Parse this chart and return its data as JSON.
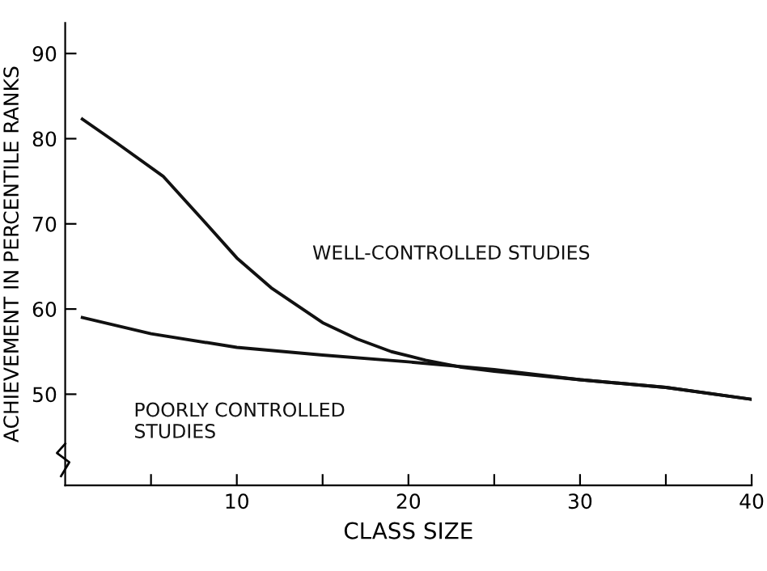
{
  "chart_data": {
    "type": "line",
    "xlabel": "CLASS SIZE",
    "ylabel": "ACHIEVEMENT IN PERCENTILE RANKS",
    "xlim": [
      0,
      40
    ],
    "ylim": [
      39.3,
      93.6
    ],
    "xticks": [
      {
        "value": 5,
        "label": null
      },
      10,
      {
        "value": 15,
        "label": null
      },
      20,
      {
        "value": 25,
        "label": null
      },
      30,
      {
        "value": 35,
        "label": null
      },
      40
    ],
    "yticks": [
      50,
      60,
      70,
      80,
      90
    ],
    "grid": false,
    "legend": false,
    "marker": "none",
    "line_style": "solid",
    "series": [
      {
        "name": "WELL-CONTROLLED STUDIES",
        "color": "#111111",
        "x": [
          1,
          3,
          5.7,
          8,
          10,
          12,
          15,
          17,
          19,
          21,
          23,
          25,
          30,
          35,
          40
        ],
        "values": [
          82.3,
          79.5,
          75.6,
          70.5,
          66,
          62.5,
          58.4,
          56.5,
          55,
          54,
          53.2,
          52.7,
          51.7,
          50.8,
          49.4
        ]
      },
      {
        "name": "POORLY CONTROLLED\nSTUDIES",
        "color": "#111111",
        "x": [
          1,
          5,
          10,
          15,
          20,
          25,
          30,
          35,
          40
        ],
        "values": [
          59,
          57.1,
          55.5,
          54.6,
          53.8,
          52.9,
          51.7,
          50.8,
          49.4
        ]
      }
    ]
  }
}
